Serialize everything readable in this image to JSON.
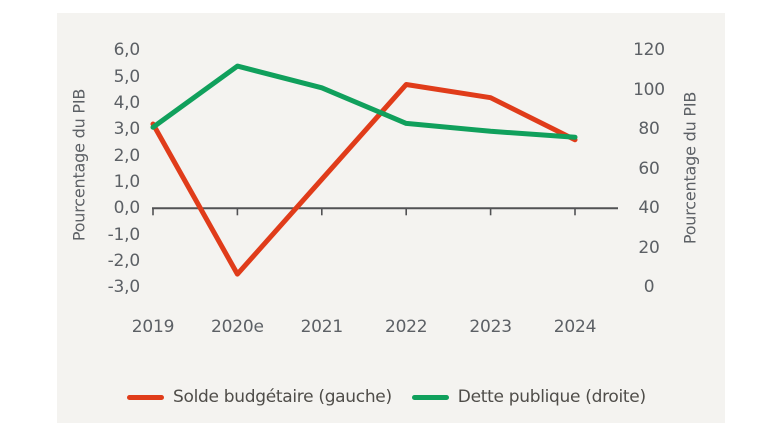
{
  "chart_data": {
    "type": "line",
    "categories": [
      "2019",
      "2020e",
      "2021",
      "2022",
      "2023",
      "2024"
    ],
    "series": [
      {
        "name": "Solde budgétaire (gauche)",
        "axis": "left",
        "color": "#e03c1a",
        "values": [
          3.2,
          -2.5,
          1.1,
          4.7,
          4.2,
          2.6
        ]
      },
      {
        "name": "Dette publique (droite)",
        "axis": "right",
        "color": "#10a05c",
        "values": [
          81,
          112,
          101,
          83,
          79,
          76
        ]
      }
    ],
    "left_axis": {
      "title": "Pourcentage du PIB",
      "range": [
        -3,
        6
      ],
      "tick_labels": [
        "6,0",
        "5,0",
        "4,0",
        "3,0",
        "2,0",
        "1,0",
        "0,0",
        "-1,0",
        "-2,0",
        "-3,0"
      ],
      "tick_values": [
        6,
        5,
        4,
        3,
        2,
        1,
        0,
        -1,
        -2,
        -3
      ]
    },
    "right_axis": {
      "title": "Pourcentage du PIB",
      "range": [
        0,
        120
      ],
      "tick_labels": [
        "120",
        "100",
        "80",
        "60",
        "40",
        "20",
        "0"
      ],
      "tick_values": [
        120,
        100,
        80,
        60,
        40,
        20,
        0
      ]
    },
    "x_axis": {
      "labels": [
        "2019",
        "2020e",
        "2021",
        "2022",
        "2023",
        "2024"
      ]
    },
    "legend_position": "bottom",
    "grid": false,
    "colors": {
      "panel_background": "#f4f3f0",
      "axis_line": "#515254",
      "tick_text": "#5c6065",
      "legend_text": "#4f4d49"
    }
  }
}
